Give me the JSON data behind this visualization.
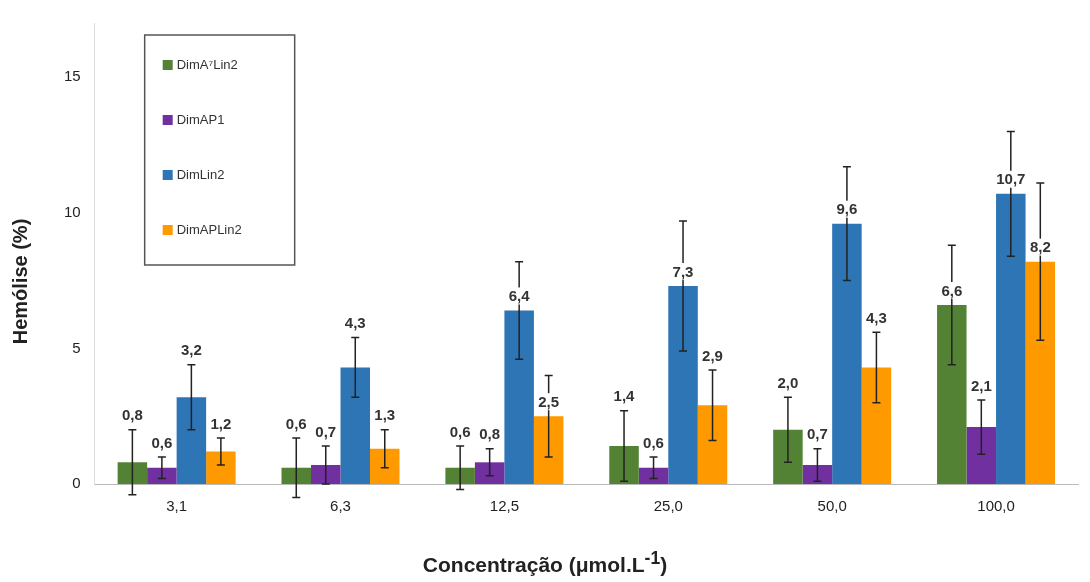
{
  "chart_data": {
    "type": "bar",
    "xlabel": "Concentração (μmol.L$^{-1}$)",
    "ylabel": "Hemólise (%)",
    "categories": [
      "3,1",
      "6,3",
      "12,5",
      "25,0",
      "50,0",
      "100,0"
    ],
    "series": [
      {
        "name": "DimA⁷Lin2",
        "color": "#548235",
        "values": [
          0.8,
          0.6,
          0.6,
          1.4,
          2.0,
          6.6
        ],
        "errors": [
          1.2,
          1.1,
          0.8,
          1.3,
          1.2,
          2.2
        ],
        "value_labels": [
          "0,8",
          "0,6",
          "0,6",
          "1,4",
          "2,0",
          "6,6"
        ]
      },
      {
        "name": "DimAP1",
        "color": "#7030a0",
        "values": [
          0.6,
          0.7,
          0.8,
          0.6,
          0.7,
          2.1
        ],
        "errors": [
          0.4,
          0.7,
          0.5,
          0.4,
          0.6,
          1.0
        ],
        "value_labels": [
          "0,6",
          "0,7",
          "0,8",
          "0,6",
          "0,7",
          "2,1"
        ]
      },
      {
        "name": "DimLin2",
        "color": "#2e75b6",
        "values": [
          3.2,
          4.3,
          6.4,
          7.3,
          9.6,
          10.7
        ],
        "errors": [
          1.2,
          1.1,
          1.8,
          2.4,
          2.1,
          2.3
        ],
        "value_labels": [
          "3,2",
          "4,3",
          "6,4",
          "7,3",
          "9,6",
          "10,7"
        ]
      },
      {
        "name": "DimAPLin2",
        "color": "#ff9900",
        "values": [
          1.2,
          1.3,
          2.5,
          2.9,
          4.3,
          8.2
        ],
        "errors": [
          0.5,
          0.7,
          1.5,
          1.3,
          1.3,
          2.9
        ],
        "value_labels": [
          "1,2",
          "1,3",
          "2,5",
          "2,9",
          "4,3",
          "8,2"
        ]
      }
    ],
    "ylim": [
      0,
      17
    ],
    "yticks": [
      0,
      5,
      10,
      15
    ],
    "grid": false,
    "legend": "top left"
  }
}
